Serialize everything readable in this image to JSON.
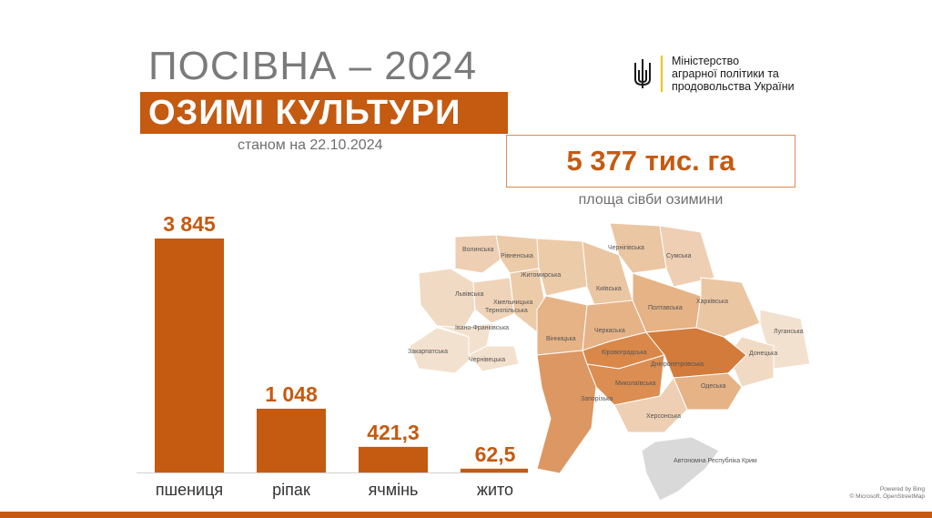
{
  "header": {
    "title": "ПОСІВНА – 2024",
    "subtitle": "ОЗИМІ КУЛЬТУРИ",
    "as_of": "станом на 22.10.2024"
  },
  "ministry": {
    "line1": "Міністерство",
    "line2": "аграрної політики та",
    "line3": "продовольства України",
    "emblem": "trident-icon"
  },
  "total": {
    "value": "5 377 тис. га",
    "caption": "площа сівби озимини"
  },
  "chart_data": {
    "type": "bar",
    "categories": [
      "пшениця",
      "ріпак",
      "ячмінь",
      "жито"
    ],
    "values": [
      3845,
      1048,
      421.3,
      62.5
    ],
    "value_labels": [
      "3 845",
      "1 048",
      "421,3",
      "62,5"
    ],
    "title": "",
    "xlabel": "",
    "ylabel": "",
    "ylim": [
      0,
      3845
    ],
    "grid": false,
    "legend": "none",
    "bar_color": "#c55a11"
  },
  "map": {
    "regions": [
      "Волинська",
      "Рівненська",
      "Житомирська",
      "Чернігівська",
      "Сумська",
      "Київська",
      "Львівська",
      "Хмельницька",
      "Тернопільська",
      "Харківська",
      "Полтавська",
      "Івано-Франківська",
      "Черкаська",
      "Луганська",
      "Вінницька",
      "Закарпатська",
      "Кіровоградська",
      "Донецька",
      "Чернівецька",
      "Дніпропетровська",
      "Миколаївська",
      "Запорізька",
      "Одеська",
      "Херсонська",
      "Автономна Республіка Крим"
    ],
    "fill_light": "#f3e1cf",
    "fill_mid": "#e8b98f",
    "fill_dark": "#d9884a",
    "fill_crimea": "#d9d9d9"
  },
  "credit": {
    "line1": "Powered by Bing",
    "line2": "© Microsoft, OpenStreetMap"
  },
  "colors": {
    "accent": "#c55a11",
    "gray_text": "#7a7a7a",
    "ministry_stripe": "#f2c300"
  }
}
